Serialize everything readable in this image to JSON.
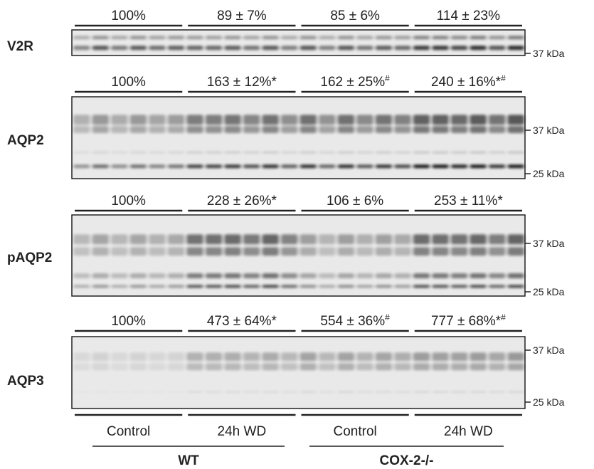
{
  "blots": [
    {
      "label": "V2R",
      "groups": [
        {
          "text": "100%"
        },
        {
          "text": "89 ± 7%"
        },
        {
          "text": "85 ± 6%"
        },
        {
          "text": "114 ± 23%"
        }
      ],
      "markers": [
        "37 kDa"
      ]
    },
    {
      "label": "AQP2",
      "groups": [
        {
          "text": "100%"
        },
        {
          "text": "163 ± 12%*"
        },
        {
          "text": "162 ± 25%",
          "sup": "#"
        },
        {
          "text": "240 ± 16%*",
          "sup": "#"
        }
      ],
      "markers": [
        "37 kDa",
        "25 kDa"
      ]
    },
    {
      "label": "pAQP2",
      "groups": [
        {
          "text": "100%"
        },
        {
          "text": "228 ± 26%*"
        },
        {
          "text": "106 ± 6%"
        },
        {
          "text": "253 ± 11%*"
        }
      ],
      "markers": [
        "37 kDa",
        "25 kDa"
      ]
    },
    {
      "label": "AQP3",
      "groups": [
        {
          "text": "100%"
        },
        {
          "text": "473 ± 64%*"
        },
        {
          "text": "554 ± 36%",
          "sup": "#"
        },
        {
          "text": "777 ± 68%*",
          "sup": "#"
        }
      ],
      "markers": [
        "37 kDa",
        "25 kDa"
      ]
    }
  ],
  "conditions": [
    "Control",
    "24h WD",
    "Control",
    "24h WD"
  ],
  "genotypes": [
    "WT",
    "COX-2-/-"
  ]
}
